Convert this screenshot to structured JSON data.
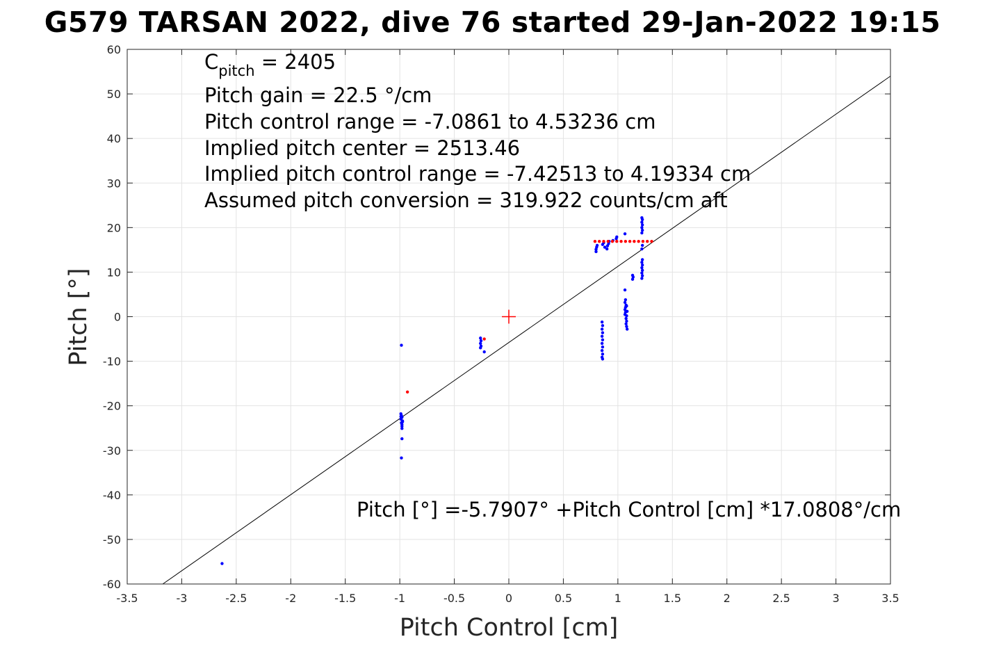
{
  "chart_data": {
    "type": "scatter",
    "title": "G579 TARSAN 2022, dive 76 started 29-Jan-2022 19:15",
    "xlabel": "Pitch Control [cm]",
    "ylabel": "Pitch [°]",
    "xlim": [
      -3.5,
      3.5
    ],
    "ylim": [
      -60,
      60
    ],
    "xticks": [
      "-3.5",
      "-3",
      "-2.5",
      "-2",
      "-1.5",
      "-1",
      "-0.5",
      "0",
      "0.5",
      "1",
      "1.5",
      "2",
      "2.5",
      "3",
      "3.5"
    ],
    "yticks": [
      "-60",
      "-50",
      "-40",
      "-30",
      "-20",
      "-10",
      "0",
      "10",
      "20",
      "30",
      "40",
      "50",
      "60"
    ],
    "grid": true,
    "colors": {
      "primary": "#0000ff",
      "secondary": "#ff0000",
      "fit": "#000000"
    },
    "annotations": {
      "c_pitch_main": "C",
      "c_pitch_sub": "pitch",
      "c_pitch_value": " = 2405",
      "pitch_gain": "Pitch gain = 22.5 °/cm",
      "control_range": "Pitch control range = -7.0861 to 4.53236 cm",
      "implied_center": "Implied pitch center = 2513.46",
      "implied_range": "Implied pitch control range = -7.42513 to 4.19334 cm",
      "conversion": "Assumed pitch conversion = 319.922 counts/cm aft",
      "fit_equation": "Pitch [°] =-5.7907° +Pitch Control [cm] *17.0808°/cm"
    },
    "fit_line": {
      "intercept": -5.7907,
      "slope": 17.0808
    },
    "center_marker": {
      "x": 0,
      "y": 0
    },
    "series": [
      {
        "color": "#0000ff",
        "points": [
          [
            -2.63,
            -55.4
          ],
          [
            -0.985,
            -6.4
          ],
          [
            -0.99,
            -21.8
          ],
          [
            -0.985,
            -22.2
          ],
          [
            -0.98,
            -22.6
          ],
          [
            -0.99,
            -23.0
          ],
          [
            -0.975,
            -23.4
          ],
          [
            -0.985,
            -23.8
          ],
          [
            -0.98,
            -24.2
          ],
          [
            -0.99,
            -22.4
          ],
          [
            -0.975,
            -23.6
          ],
          [
            -0.98,
            -24.6
          ],
          [
            -0.98,
            -25.1
          ],
          [
            -0.98,
            -27.4
          ],
          [
            -0.985,
            -31.7
          ],
          [
            -0.26,
            -4.8
          ],
          [
            -0.255,
            -5.4
          ],
          [
            -0.26,
            -6.0
          ],
          [
            -0.255,
            -6.6
          ],
          [
            -0.26,
            -7.0
          ],
          [
            -0.225,
            -7.9
          ],
          [
            0.8,
            14.6
          ],
          [
            0.8,
            15.1
          ],
          [
            0.805,
            15.6
          ],
          [
            0.81,
            16.0
          ],
          [
            0.86,
            16.2
          ],
          [
            0.87,
            16.6
          ],
          [
            0.88,
            15.6
          ],
          [
            0.9,
            15.2
          ],
          [
            0.905,
            15.9
          ],
          [
            0.915,
            16.4
          ],
          [
            0.92,
            16.9
          ],
          [
            0.955,
            17.1
          ],
          [
            0.985,
            17.5
          ],
          [
            0.99,
            17.9
          ],
          [
            1.065,
            18.6
          ],
          [
            0.855,
            -1.2
          ],
          [
            0.86,
            -2.0
          ],
          [
            0.855,
            -2.8
          ],
          [
            0.86,
            -3.6
          ],
          [
            0.855,
            -4.4
          ],
          [
            0.86,
            -5.2
          ],
          [
            0.855,
            -6.0
          ],
          [
            0.86,
            -6.8
          ],
          [
            0.855,
            -7.6
          ],
          [
            0.86,
            -8.4
          ],
          [
            0.855,
            -9.1
          ],
          [
            0.86,
            -9.5
          ],
          [
            1.065,
            0.5
          ],
          [
            1.07,
            1.0
          ],
          [
            1.065,
            1.6
          ],
          [
            1.07,
            2.1
          ],
          [
            1.075,
            2.6
          ],
          [
            1.065,
            3.2
          ],
          [
            1.07,
            3.8
          ],
          [
            1.065,
            6.0
          ],
          [
            1.075,
            -0.4
          ],
          [
            1.08,
            -1.0
          ],
          [
            1.075,
            -1.6
          ],
          [
            1.08,
            -2.2
          ],
          [
            1.085,
            -2.8
          ],
          [
            1.08,
            0.2
          ],
          [
            1.085,
            1.2
          ],
          [
            1.08,
            2.4
          ],
          [
            1.135,
            8.4
          ],
          [
            1.14,
            8.9
          ],
          [
            1.135,
            9.3
          ],
          [
            1.22,
            8.6
          ],
          [
            1.225,
            9.2
          ],
          [
            1.22,
            9.8
          ],
          [
            1.225,
            10.4
          ],
          [
            1.22,
            11.0
          ],
          [
            1.225,
            11.6
          ],
          [
            1.22,
            12.2
          ],
          [
            1.225,
            12.8
          ],
          [
            1.22,
            15.2
          ],
          [
            1.225,
            16.0
          ],
          [
            1.22,
            18.8
          ],
          [
            1.225,
            19.4
          ],
          [
            1.22,
            20.0
          ],
          [
            1.225,
            20.6
          ],
          [
            1.22,
            21.2
          ],
          [
            1.225,
            21.8
          ],
          [
            1.22,
            22.2
          ]
        ]
      },
      {
        "color": "#ff0000",
        "points": [
          [
            -0.93,
            -16.9
          ],
          [
            -0.225,
            -5.0
          ],
          [
            0.79,
            16.9
          ],
          [
            0.83,
            16.9
          ],
          [
            0.87,
            16.9
          ],
          [
            0.91,
            16.9
          ],
          [
            0.95,
            16.9
          ],
          [
            0.99,
            16.9
          ],
          [
            1.03,
            16.9
          ],
          [
            1.07,
            16.9
          ],
          [
            1.11,
            16.9
          ],
          [
            1.15,
            16.9
          ],
          [
            1.19,
            16.9
          ],
          [
            1.23,
            16.9
          ],
          [
            1.27,
            16.9
          ],
          [
            1.31,
            16.9
          ]
        ]
      }
    ]
  }
}
